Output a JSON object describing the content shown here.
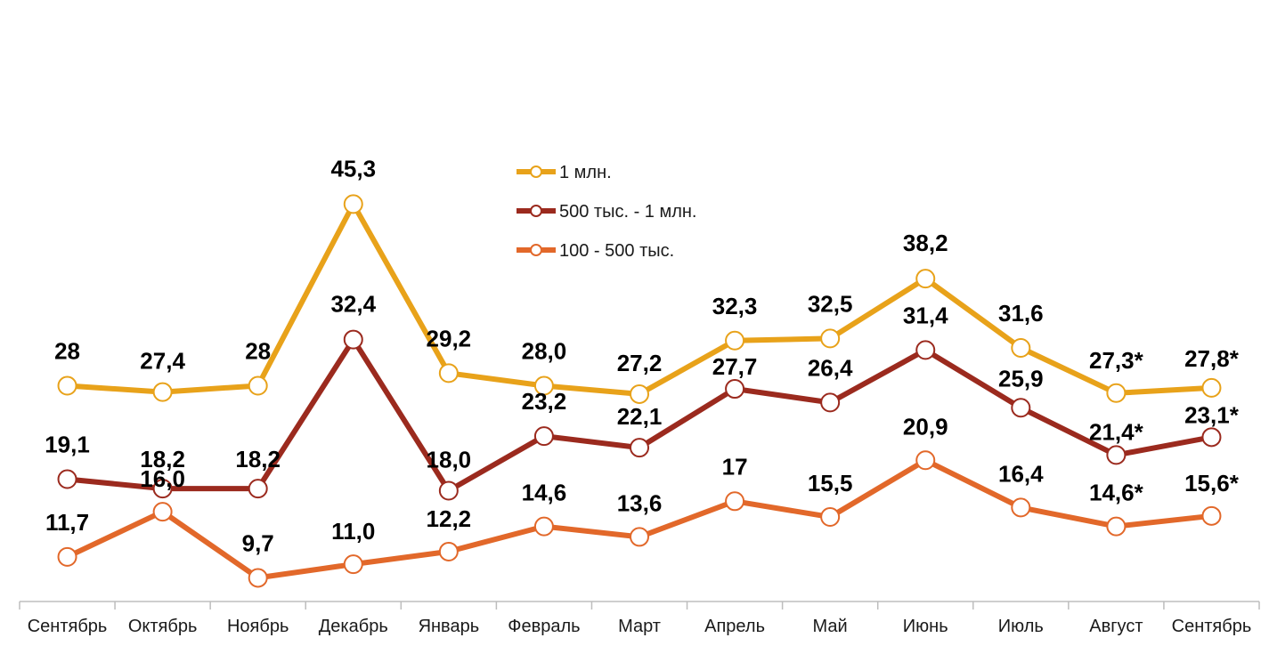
{
  "chart_data": {
    "type": "line",
    "title": "",
    "xlabel": "",
    "ylabel": "",
    "grid": false,
    "legend_position": "top-center",
    "categories": [
      "Сентябрь",
      "Октябрь",
      "Ноябрь",
      "Декабрь",
      "Январь",
      "Февраль",
      "Март",
      "Апрель",
      "Май",
      "Июнь",
      "Июль",
      "Август",
      "Сентябрь"
    ],
    "series": [
      {
        "name": "1 млн.",
        "color": "#E8A21A",
        "values": [
          28,
          27.4,
          28,
          45.3,
          29.2,
          28.0,
          27.2,
          32.3,
          32.5,
          38.2,
          31.6,
          27.3,
          27.8
        ],
        "labels": [
          "28",
          "27,4",
          "28",
          "45,3",
          "29,2",
          "28,0",
          "27,2",
          "32,3",
          "32,5",
          "38,2",
          "31,6",
          "27,3*",
          "27,8*"
        ]
      },
      {
        "name": "500 тыс. - 1 млн.",
        "color": "#9B2A1E",
        "values": [
          19.1,
          18.2,
          18.2,
          32.4,
          18.0,
          23.2,
          22.1,
          27.7,
          26.4,
          31.4,
          25.9,
          21.4,
          23.1
        ],
        "labels": [
          "19,1",
          "18,2",
          "18,2",
          "32,4",
          "18,0",
          "23,2",
          "22,1",
          "27,7",
          "26,4",
          "31,4",
          "25,9",
          "21,4*",
          "23,1*"
        ]
      },
      {
        "name": "100 - 500 тыс.",
        "color": "#E2682A",
        "values": [
          11.7,
          16.0,
          9.7,
          11.0,
          12.2,
          14.6,
          13.6,
          17,
          15.5,
          20.9,
          16.4,
          14.6,
          15.6
        ],
        "labels": [
          "11,7",
          "16,0",
          "9,7",
          "11,0",
          "12,2",
          "14,6",
          "13,6",
          "17",
          "15,5",
          "20,9",
          "16,4",
          "14,6*",
          "15,6*"
        ]
      }
    ]
  }
}
